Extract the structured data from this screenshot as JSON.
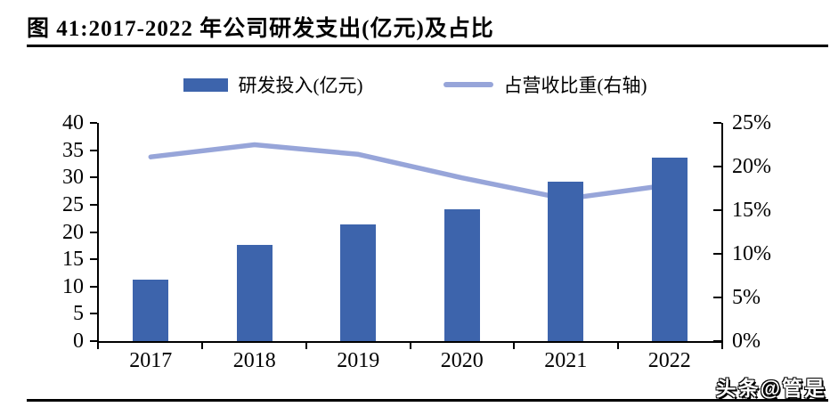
{
  "figure": {
    "title": "图 41:2017-2022 年公司研发支出(亿元)及占比",
    "watermark": "头条@管是"
  },
  "legend": [
    {
      "label": "研发投入(亿元)",
      "type": "bar",
      "color": "#3D64AC"
    },
    {
      "label": "占营收比重(右轴)",
      "type": "line",
      "color": "#97A5D9"
    }
  ],
  "chart_data": {
    "type": "bar",
    "subtype": "bar+line dual axis",
    "title": "图 41:2017-2022 年公司研发支出(亿元)及占比",
    "categories": [
      "2017",
      "2018",
      "2019",
      "2020",
      "2021",
      "2022"
    ],
    "series": [
      {
        "name": "研发投入(亿元)",
        "type": "bar",
        "axis": "left",
        "color": "#3D64AC",
        "values": [
          11.3,
          17.6,
          21.4,
          24.1,
          29.3,
          33.6
        ]
      },
      {
        "name": "占营收比重(右轴)",
        "type": "line",
        "axis": "right",
        "color": "#97A5D9",
        "values": [
          21.1,
          22.5,
          21.4,
          18.7,
          16.3,
          17.9
        ]
      }
    ],
    "left_axis": {
      "min": 0,
      "max": 40,
      "ticks": [
        "0",
        "5",
        "10",
        "15",
        "20",
        "25",
        "30",
        "35",
        "40"
      ]
    },
    "right_axis": {
      "min": 0,
      "max": 25,
      "ticks": [
        "0%",
        "5%",
        "10%",
        "15%",
        "20%",
        "25%"
      ]
    },
    "xlabel": "",
    "ylabel": "",
    "grid": false,
    "legend_position": "top"
  }
}
